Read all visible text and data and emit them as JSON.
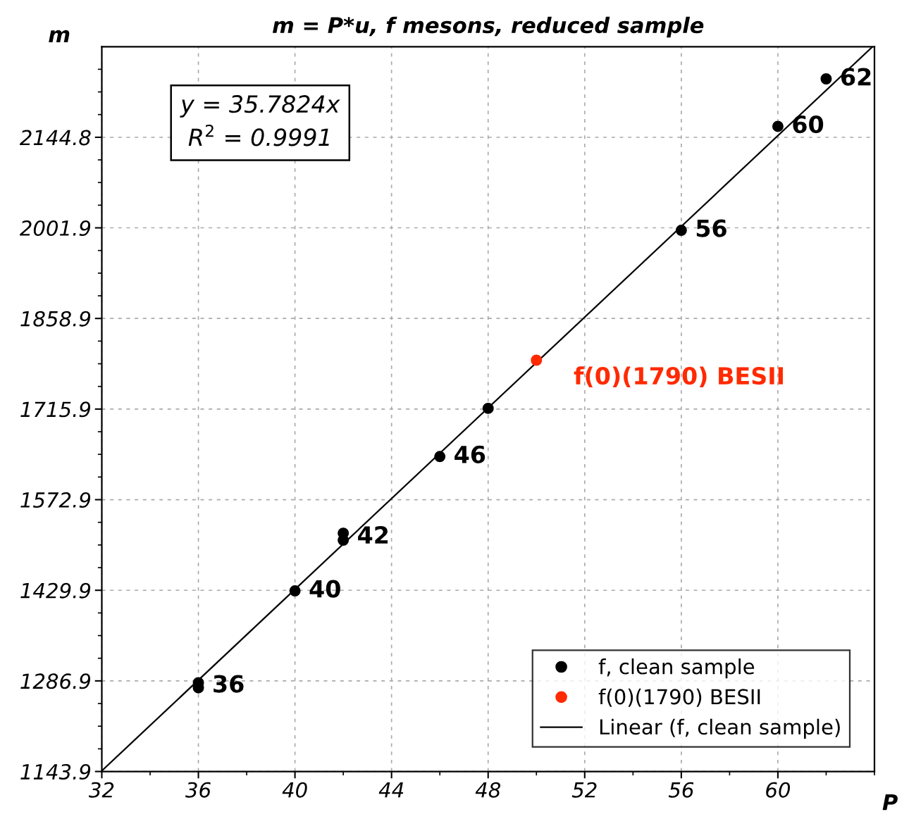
{
  "chart_data": {
    "type": "scatter",
    "title": "m = P*u, f mesons, reduced sample",
    "xlabel": "P",
    "ylabel": "m",
    "xlim": [
      32,
      64
    ],
    "xticks": [
      32,
      36,
      40,
      44,
      48,
      52,
      56,
      60
    ],
    "ylim": [
      1143.9,
      2287.8
    ],
    "yticks": [
      1143.9,
      1286.9,
      1429.9,
      1572.9,
      1715.9,
      1858.9,
      2001.9,
      2144.8
    ],
    "grid": true,
    "legend": "bottom right",
    "marker": "circle",
    "series": [
      {
        "name": "f, clean sample",
        "color": "#000000",
        "x": [
          36,
          36,
          40,
          42,
          42,
          46,
          48,
          56,
          60,
          62
        ],
        "values": [
          1284,
          1276,
          1429,
          1520,
          1509,
          1641,
          1717,
          1998,
          2162,
          2237
        ]
      },
      {
        "name": "f(0)(1790) BESII",
        "color": "#ff2a00",
        "x": [
          50
        ],
        "values": [
          1793
        ]
      },
      {
        "name": "Linear (f, clean sample)",
        "type": "line",
        "line_style": "solid",
        "marker": "none",
        "color": "#000000",
        "x": [
          32,
          63.9
        ],
        "values": [
          1145,
          2287
        ]
      }
    ],
    "annotations": [
      "y = 35.7824x",
      "R$^{2}$ = 0.9991",
      {
        "text": "36",
        "x": 36,
        "y": 1279
      },
      {
        "text": "40",
        "x": 40,
        "y": 1429
      },
      {
        "text": "42",
        "x": 42,
        "y": 1514
      },
      {
        "text": "46",
        "x": 46,
        "y": 1641
      },
      {
        "text": "56",
        "x": 56,
        "y": 1998
      },
      {
        "text": "60",
        "x": 60,
        "y": 2162
      },
      {
        "text": "62",
        "x": 62,
        "y": 2237
      },
      {
        "text": "f(0)(1790) BESII",
        "x": 50,
        "y": 1793
      }
    ]
  }
}
